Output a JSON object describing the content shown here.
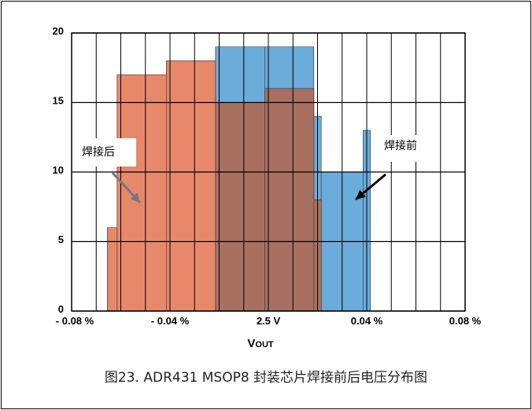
{
  "chart_data": {
    "type": "bar",
    "title": "",
    "xlabel_main": "V",
    "xlabel_sub": "OUT",
    "ylabel": "",
    "ylim": [
      0,
      20
    ],
    "yticks": [
      "0",
      "5",
      "10",
      "15",
      "20"
    ],
    "xticks": [
      "- 0.08 %",
      "- 0.04 %",
      "2.5 V",
      "0.04 %",
      "0.08 %"
    ],
    "grid": true,
    "bin_edges_pct": [
      -0.08,
      -0.07,
      -0.06,
      -0.05,
      -0.04,
      -0.03,
      -0.02,
      -0.01,
      0,
      0.01,
      0.02,
      0.03,
      0.04,
      0.05,
      0.06,
      0.07,
      0.08
    ],
    "series": [
      {
        "annotation": "焊接后",
        "color": "#E8886A",
        "bins": [
          {
            "x0": -0.0655,
            "x1": -0.0615,
            "value": 6
          },
          {
            "x0": -0.0615,
            "x1": -0.0415,
            "value": 17
          },
          {
            "x0": -0.0415,
            "x1": -0.0215,
            "value": 18
          },
          {
            "x0": -0.0215,
            "x1": -0.0015,
            "value": 15
          },
          {
            "x0": -0.0015,
            "x1": 0.0185,
            "value": 16
          },
          {
            "x0": 0.0185,
            "x1": 0.0215,
            "value": 8
          }
        ]
      },
      {
        "annotation": "焊接前",
        "color": "#5BA3D6",
        "bins": [
          {
            "x0": -0.0215,
            "x1": -0.0015,
            "value": 19
          },
          {
            "x0": -0.0015,
            "x1": 0.0185,
            "value": 19
          },
          {
            "x0": 0.0185,
            "x1": 0.0215,
            "value": 14
          },
          {
            "x0": 0.0215,
            "x1": 0.0385,
            "value": 10
          },
          {
            "x0": 0.0385,
            "x1": 0.0415,
            "value": 13
          }
        ]
      }
    ]
  },
  "caption": "图23.  ADR431   MSOP8 封装芯片焊接前后电压分布图"
}
